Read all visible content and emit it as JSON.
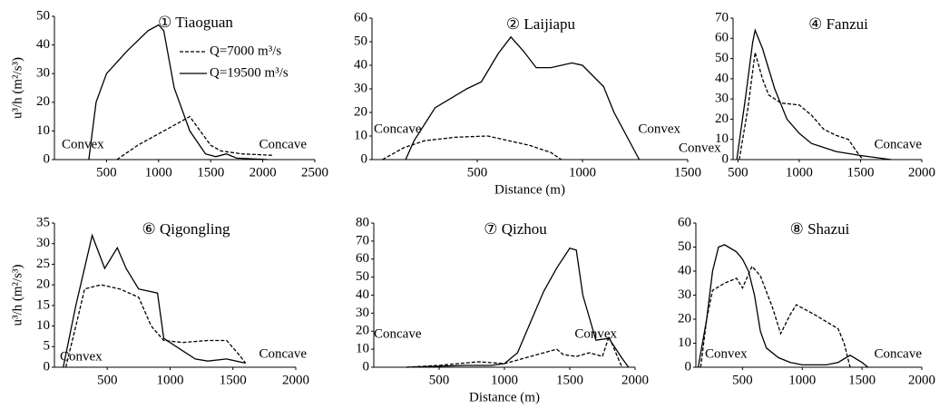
{
  "chart_data": [
    {
      "type": "line",
      "title": "① Tiaoguan",
      "ylabel": "u³/h (m²/s³)",
      "xlim": [
        0,
        2500
      ],
      "ylim": [
        0,
        50
      ],
      "xticks": [
        500,
        1000,
        1500,
        2000,
        2500
      ],
      "yticks": [
        0,
        10,
        20,
        30,
        40,
        50
      ],
      "annotations": [
        "Convex",
        "Concave"
      ],
      "legend": "upper right",
      "series": [
        {
          "name": "Q=7000 m³/s",
          "color": "#000000",
          "style": "dashed",
          "x": [
            600,
            800,
            1000,
            1200,
            1300,
            1400,
            1500,
            1600,
            1800,
            2100
          ],
          "values": [
            0,
            5,
            9,
            13,
            15,
            10,
            5,
            3,
            2,
            1.5
          ]
        },
        {
          "name": "Q=19500 m³/s",
          "color": "#000000",
          "style": "solid",
          "x": [
            330,
            400,
            500,
            700,
            900,
            1000,
            1050,
            1150,
            1300,
            1450,
            1550,
            1650,
            1750,
            2050
          ],
          "values": [
            0,
            20,
            30,
            38,
            45,
            47,
            45,
            25,
            10,
            2,
            1,
            2,
            0.5,
            0
          ]
        }
      ]
    },
    {
      "type": "line",
      "title": "② Laijiapu",
      "xlabel": "Distance (m)",
      "xlim": [
        0,
        1500
      ],
      "ylim": [
        0,
        60
      ],
      "xticks": [
        500,
        1000,
        1500
      ],
      "yticks": [
        0,
        10,
        20,
        30,
        40,
        50,
        60
      ],
      "annotations": [
        "Concave",
        "Convex"
      ],
      "series": [
        {
          "color": "#000000",
          "style": "dashed",
          "x": [
            50,
            150,
            250,
            400,
            550,
            650,
            750,
            850,
            900
          ],
          "values": [
            0,
            5,
            8,
            9.5,
            10,
            8,
            6,
            3,
            0
          ]
        },
        {
          "color": "#000000",
          "style": "solid",
          "x": [
            160,
            200,
            300,
            450,
            520,
            600,
            660,
            720,
            780,
            850,
            950,
            1000,
            1100,
            1150,
            1270
          ],
          "values": [
            0,
            8,
            22,
            30,
            33,
            45,
            52,
            46,
            39,
            39,
            41,
            40,
            31,
            20,
            0
          ]
        }
      ]
    },
    {
      "type": "line",
      "title": "④ Fanzui",
      "xlim": [
        460,
        2000
      ],
      "ylim": [
        0,
        70
      ],
      "xticks": [
        500,
        1000,
        1500,
        2000
      ],
      "yticks": [
        0,
        10,
        20,
        30,
        40,
        50,
        60,
        70
      ],
      "annotations": [
        "Convex",
        "Concave"
      ],
      "series": [
        {
          "color": "#000000",
          "style": "dashed",
          "x": [
            510,
            580,
            640,
            700,
            750,
            850,
            1000,
            1100,
            1200,
            1300,
            1400,
            1480,
            1520
          ],
          "values": [
            0,
            25,
            53,
            40,
            32,
            28,
            27,
            22,
            15,
            12,
            10,
            3,
            0
          ]
        },
        {
          "color": "#000000",
          "style": "solid",
          "x": [
            490,
            560,
            620,
            640,
            700,
            800,
            900,
            1000,
            1100,
            1200,
            1300,
            1500,
            1750
          ],
          "values": [
            0,
            30,
            58,
            64,
            55,
            35,
            20,
            13,
            8,
            6,
            4,
            2,
            0
          ]
        }
      ]
    },
    {
      "type": "line",
      "title": "⑥ Qigongling",
      "ylabel": "u³/h (m²/s³)",
      "xlim": [
        80,
        2000
      ],
      "ylim": [
        0,
        35
      ],
      "xticks": [
        500,
        1000,
        1500,
        2000
      ],
      "yticks": [
        0,
        5,
        10,
        15,
        20,
        25,
        30,
        35
      ],
      "annotations": [
        "Convex",
        "Concave"
      ],
      "series": [
        {
          "color": "#000000",
          "style": "dashed",
          "x": [
            170,
            250,
            320,
            450,
            600,
            750,
            850,
            950,
            1100,
            1300,
            1450,
            1550,
            1600
          ],
          "values": [
            0,
            10,
            19,
            20,
            19,
            17,
            10,
            6.5,
            6,
            6.5,
            6.5,
            3,
            1
          ]
        },
        {
          "color": "#000000",
          "style": "solid",
          "x": [
            150,
            250,
            380,
            480,
            580,
            650,
            750,
            900,
            950,
            1050,
            1200,
            1300,
            1450,
            1600
          ],
          "values": [
            0,
            15,
            32,
            24,
            29,
            24,
            19,
            18,
            7,
            5,
            2,
            1.5,
            2,
            1
          ]
        }
      ]
    },
    {
      "type": "line",
      "title": "⑦ Qizhou",
      "xlabel": "Distance (m)",
      "xlim": [
        0,
        2000
      ],
      "ylim": [
        0,
        80
      ],
      "xticks": [
        500,
        1000,
        1500,
        2000
      ],
      "yticks": [
        0,
        10,
        20,
        30,
        40,
        50,
        60,
        70,
        80
      ],
      "annotations": [
        "Concave",
        "Convex"
      ],
      "series": [
        {
          "color": "#000000",
          "style": "dashed",
          "x": [
            250,
            500,
            800,
            1000,
            1100,
            1200,
            1300,
            1400,
            1450,
            1550,
            1650,
            1750,
            1800,
            1870,
            1900
          ],
          "values": [
            0,
            1,
            3,
            2,
            4,
            6,
            8,
            10,
            7,
            6,
            8,
            6,
            17,
            5,
            0
          ]
        },
        {
          "color": "#000000",
          "style": "solid",
          "x": [
            250,
            700,
            900,
            1000,
            1100,
            1200,
            1300,
            1400,
            1500,
            1550,
            1600,
            1700,
            1800,
            1900,
            1950
          ],
          "values": [
            0,
            1,
            1,
            2,
            8,
            25,
            42,
            55,
            66,
            65,
            40,
            15,
            16,
            5,
            0
          ]
        }
      ]
    },
    {
      "type": "line",
      "title": "⑧ Shazui",
      "xlim": [
        110,
        2000
      ],
      "ylim": [
        0,
        60
      ],
      "xticks": [
        500,
        1000,
        1500,
        2000
      ],
      "yticks": [
        0,
        10,
        20,
        30,
        40,
        50,
        60
      ],
      "annotations": [
        "Convex",
        "Concave"
      ],
      "series": [
        {
          "color": "#000000",
          "style": "dashed",
          "x": [
            150,
            200,
            250,
            350,
            450,
            500,
            580,
            650,
            750,
            820,
            900,
            950,
            1100,
            1300,
            1350,
            1400
          ],
          "values": [
            0,
            20,
            32,
            35,
            37,
            33,
            42,
            38,
            25,
            14,
            22,
            26,
            22,
            16,
            10,
            0
          ]
        },
        {
          "color": "#000000",
          "style": "solid",
          "x": [
            130,
            200,
            250,
            300,
            350,
            450,
            500,
            550,
            600,
            650,
            700,
            800,
            900,
            1000,
            1200,
            1300,
            1400,
            1500,
            1550
          ],
          "values": [
            0,
            20,
            40,
            50,
            51,
            48,
            45,
            40,
            30,
            15,
            8,
            4,
            2,
            1,
            1,
            2,
            5,
            2,
            0
          ]
        }
      ]
    }
  ]
}
